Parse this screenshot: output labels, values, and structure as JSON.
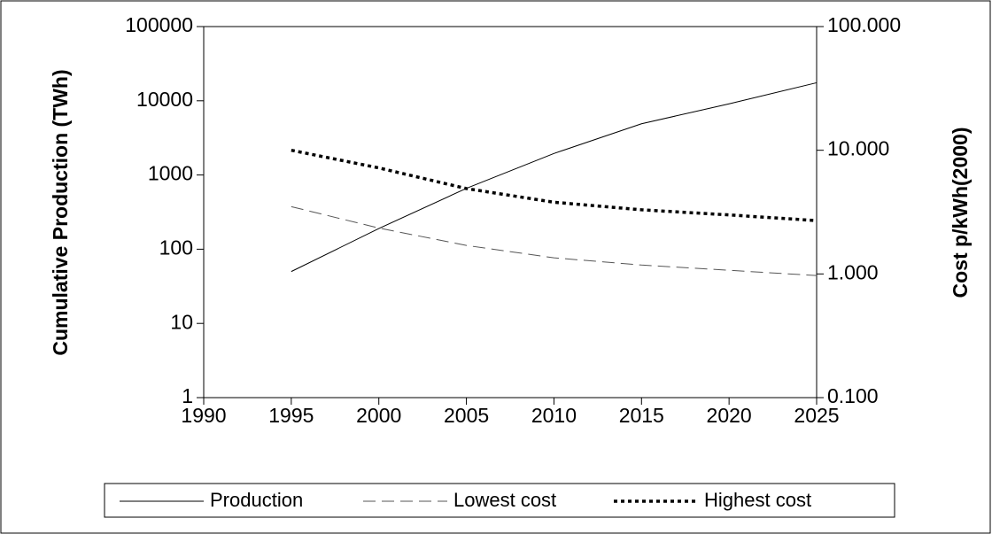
{
  "chart_data": {
    "type": "line",
    "x": [
      1995,
      2000,
      2005,
      2010,
      2015,
      2020,
      2025
    ],
    "series": [
      {
        "name": "Production",
        "color": "#000000",
        "style": "solid",
        "values": [
          50,
          190,
          660,
          1950,
          4900,
          9100,
          17500
        ]
      },
      {
        "name": "Lowest cost",
        "color": "#555555",
        "style": "dashed",
        "axis": "y2",
        "values": [
          3.5,
          2.35,
          1.7,
          1.35,
          1.18,
          1.07,
          0.97
        ]
      },
      {
        "name": "Highest cost",
        "color": "#000000",
        "style": "dotted",
        "axis": "y2",
        "values": [
          10,
          7.2,
          4.9,
          3.8,
          3.3,
          3.0,
          2.7
        ]
      }
    ],
    "ylabel": "Cumulative Production (TWh)",
    "y2label": "Cost p/kWh(2000)",
    "xlim": [
      1990,
      2025
    ],
    "xticks": [
      1990,
      1995,
      2000,
      2005,
      2010,
      2015,
      2020,
      2025
    ],
    "ylim": [
      1,
      100000
    ],
    "yticks": [
      1,
      10,
      100,
      1000,
      10000,
      100000
    ],
    "ylog": true,
    "y2lim": [
      0.1,
      100
    ],
    "y2log": true,
    "y2ticks": [
      {
        "value": 0.1,
        "label": "0.100"
      },
      {
        "value": 1,
        "label": "1.000"
      },
      {
        "value": 10,
        "label": "10.000"
      },
      {
        "value": 100,
        "label": "100.000"
      }
    ],
    "grid": false,
    "legend": "bottom"
  }
}
